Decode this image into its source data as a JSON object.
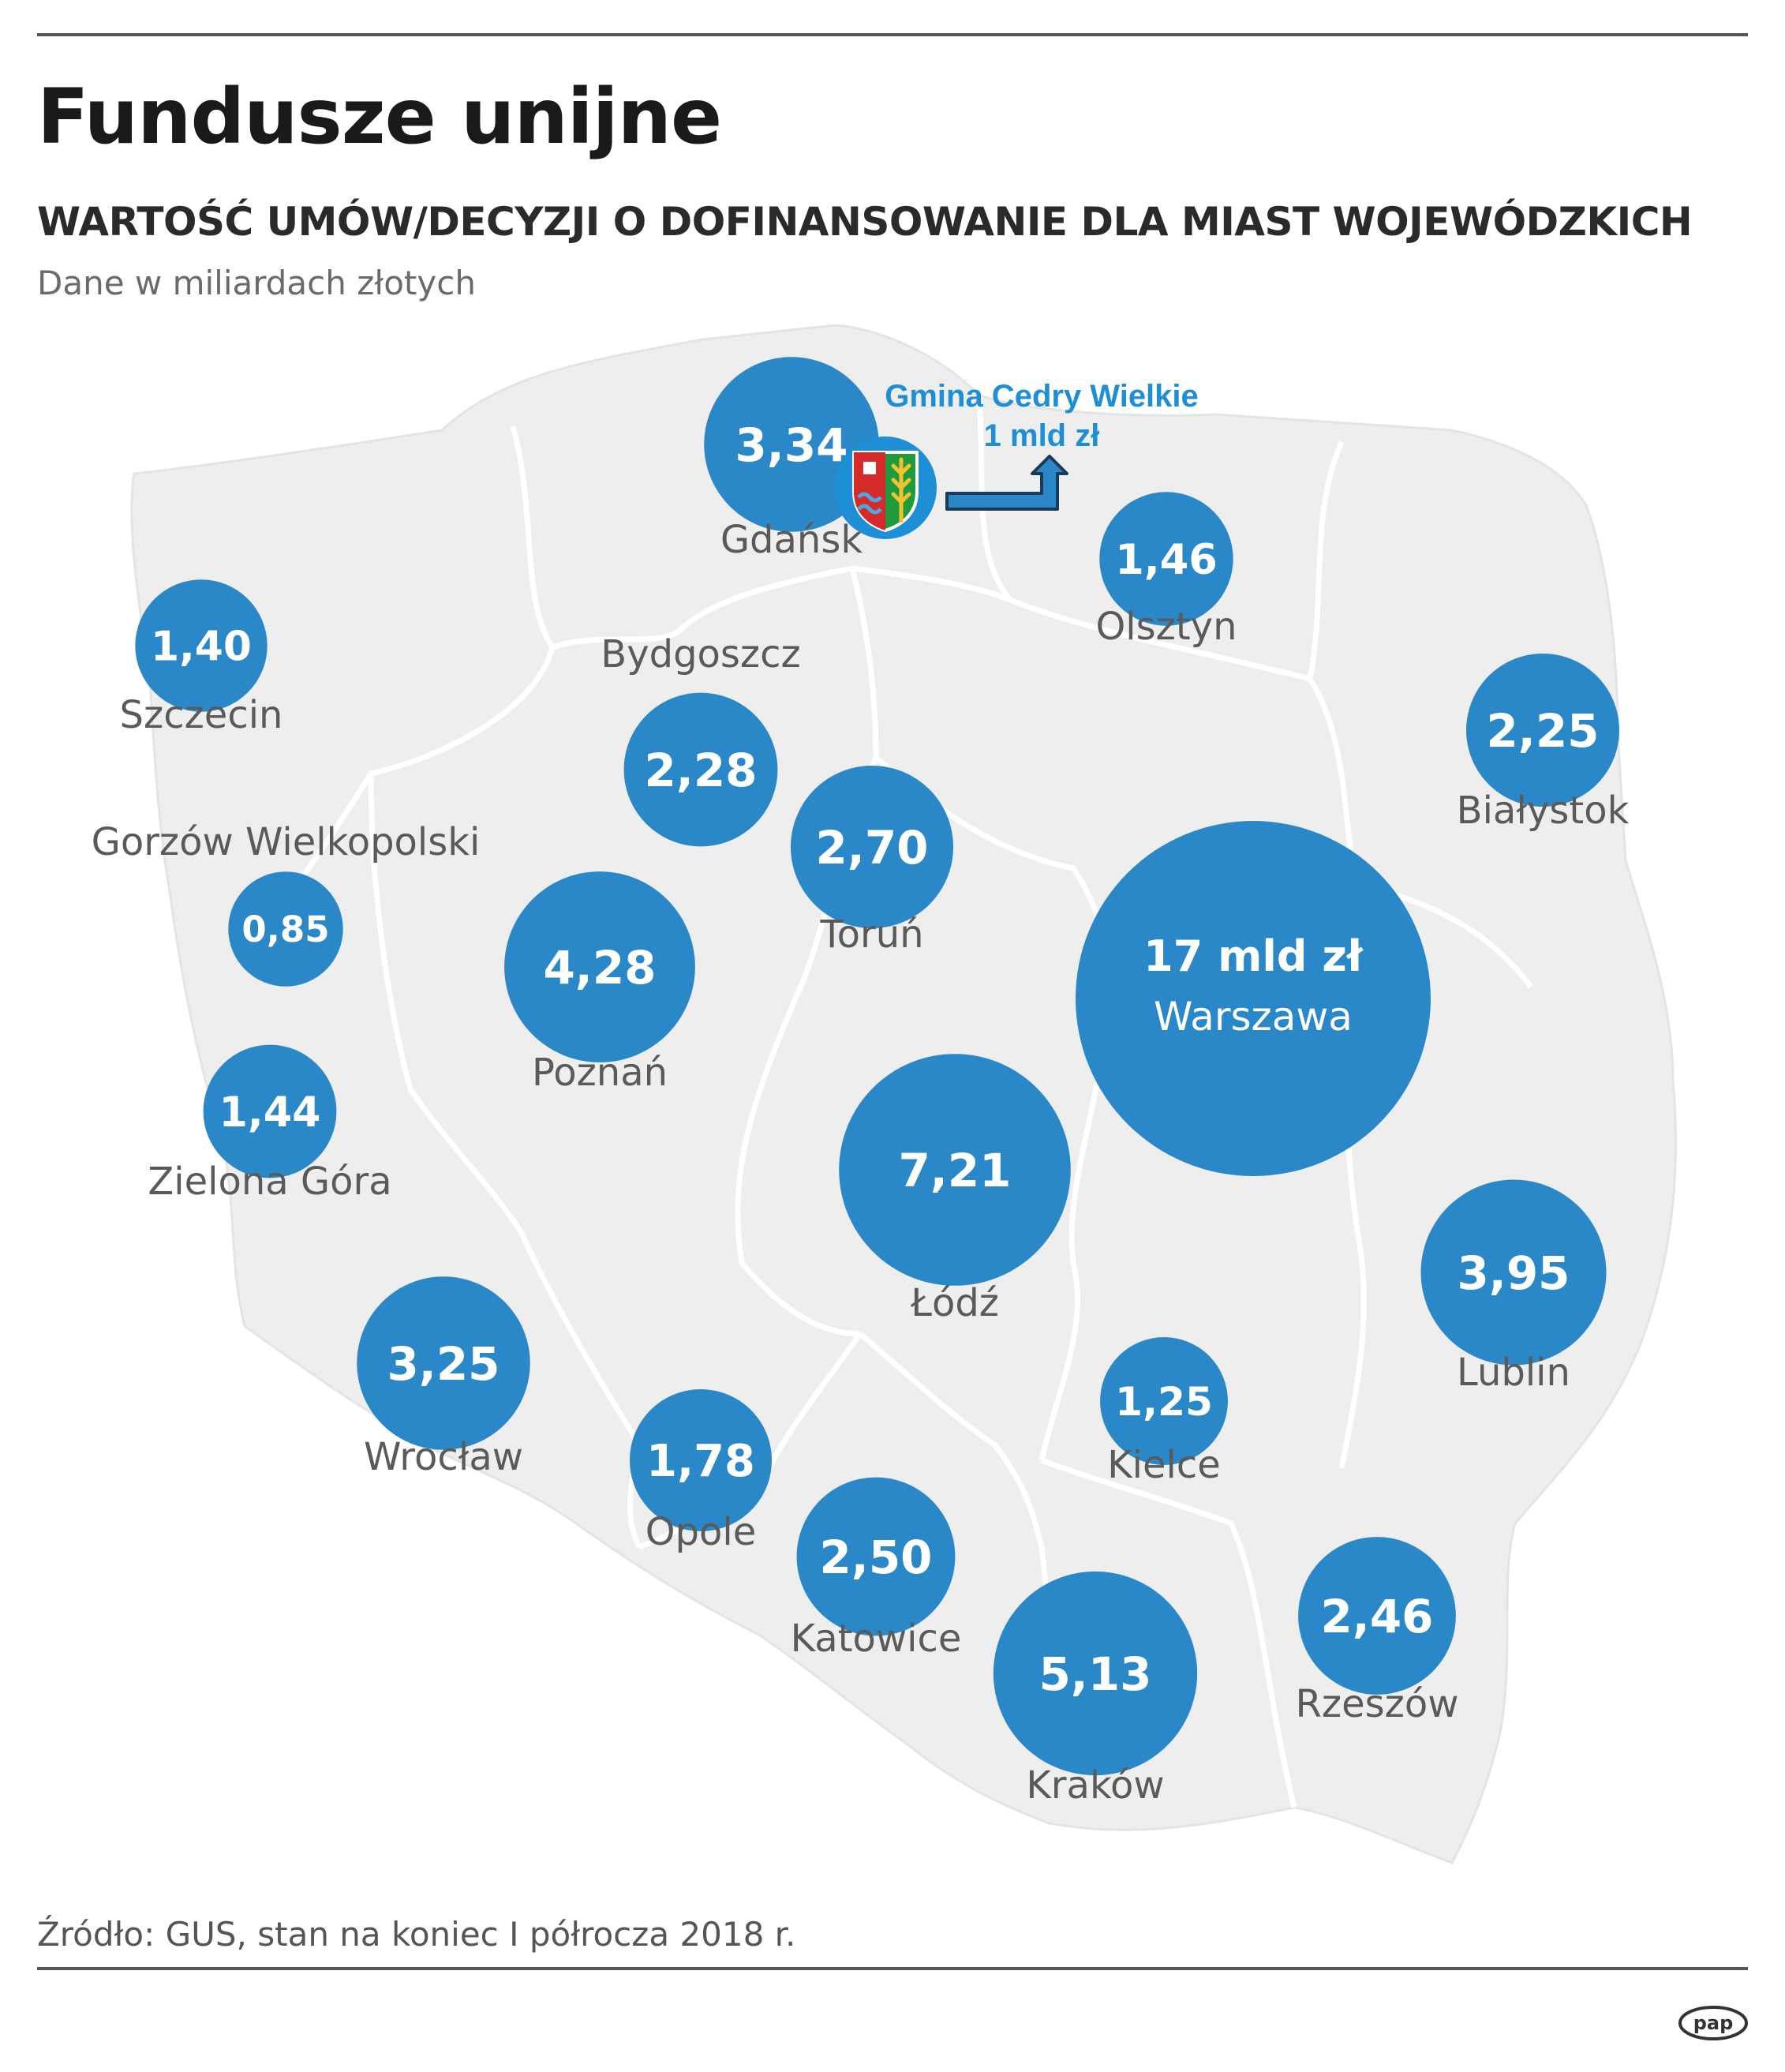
{
  "header": {
    "title": "Fundusze unijne",
    "subtitle": "WARTOŚĆ UMÓW/DECYZJI O DOFINANSOWANIE DLA MIAST WOJEWÓDZKICH",
    "units": "Dane w miliardach złotych"
  },
  "footer": {
    "source": "Źródło: GUS, stan na koniec I półrocza 2018 r.",
    "logo_text": "pap"
  },
  "colors": {
    "bubble": "#2a88c9",
    "map_fill": "#eeeeee",
    "map_border": "#ffffff",
    "annotation": "#1e8fd6"
  },
  "annotation": {
    "line1": "Gmina Cedry Wielkie",
    "line2": "1 mld zł",
    "value": 1,
    "icon": "coat-of-arms-icon"
  },
  "chart_data": {
    "type": "bubble-map",
    "unit": "mld zł",
    "cities": [
      {
        "name": "Gdańsk",
        "label": "3,34",
        "value": 3.34
      },
      {
        "name": "Olsztyn",
        "label": "1,46",
        "value": 1.46
      },
      {
        "name": "Szczecin",
        "label": "1,40",
        "value": 1.4
      },
      {
        "name": "Bydgoszcz",
        "label": "2,28",
        "value": 2.28
      },
      {
        "name": "Toruń",
        "label": "2,70",
        "value": 2.7
      },
      {
        "name": "Białystok",
        "label": "2,25",
        "value": 2.25
      },
      {
        "name": "Gorzów Wielkopolski",
        "label": "0,85",
        "value": 0.85
      },
      {
        "name": "Poznań",
        "label": "4,28",
        "value": 4.28
      },
      {
        "name": "Warszawa",
        "label": "17 mld zł",
        "value": 17
      },
      {
        "name": "Zielona Góra",
        "label": "1,44",
        "value": 1.44
      },
      {
        "name": "Łódź",
        "label": "7,21",
        "value": 7.21
      },
      {
        "name": "Lublin",
        "label": "3,95",
        "value": 3.95
      },
      {
        "name": "Wrocław",
        "label": "3,25",
        "value": 3.25
      },
      {
        "name": "Kielce",
        "label": "1,25",
        "value": 1.25
      },
      {
        "name": "Opole",
        "label": "1,78",
        "value": 1.78
      },
      {
        "name": "Katowice",
        "label": "2,50",
        "value": 2.5
      },
      {
        "name": "Rzeszów",
        "label": "2,46",
        "value": 2.46
      },
      {
        "name": "Kraków",
        "label": "5,13",
        "value": 5.13
      }
    ]
  }
}
